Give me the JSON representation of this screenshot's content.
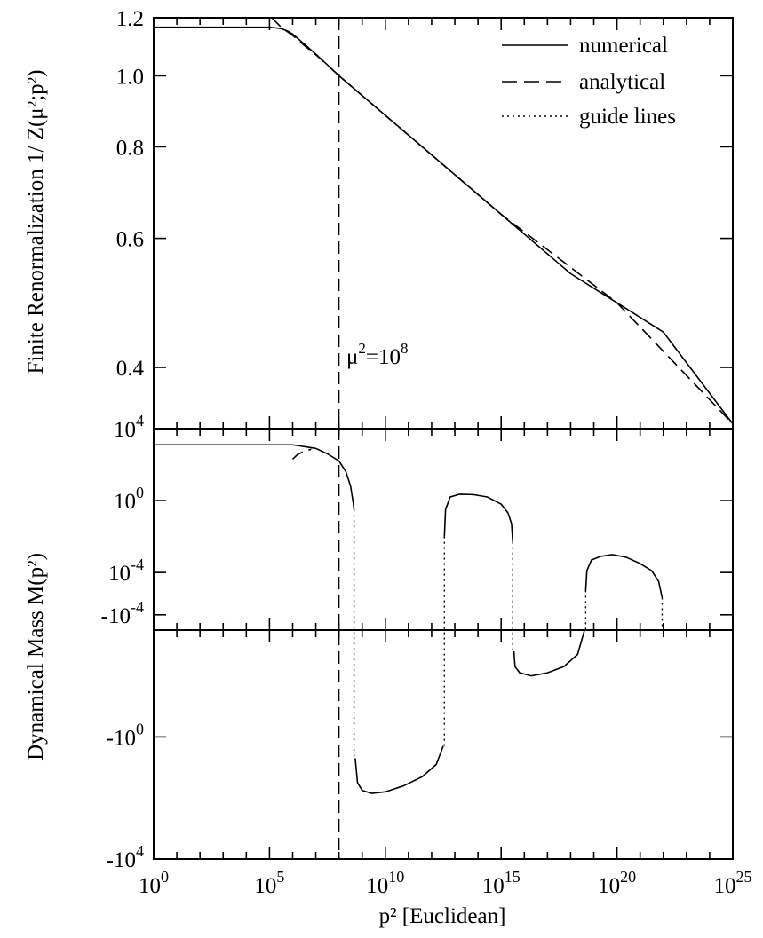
{
  "chart_data": [
    {
      "panel": "top",
      "type": "line",
      "ylabel": "Finite Renormalization 1/ Z(μ²;p²)",
      "yscale": "log",
      "ylim": [
        0.33,
        1.2
      ],
      "xscale": "log",
      "xlim": [
        1,
        1e+25
      ],
      "yticks": [
        {
          "label": "1.2",
          "value": 1.2
        },
        {
          "label": "1.0",
          "value": 1.0
        },
        {
          "label": "0.8",
          "value": 0.8
        },
        {
          "label": "0.6",
          "value": 0.6
        },
        {
          "label": "0.4",
          "value": 0.4
        }
      ],
      "legend": {
        "position": "top-right",
        "entries": [
          {
            "label": "numerical",
            "style": "solid"
          },
          {
            "label": "analytical",
            "style": "dashed"
          },
          {
            "label": "guide lines",
            "style": "dotted"
          }
        ]
      },
      "annotation": {
        "base": "μ",
        "sup1": "2",
        "mid": "=10",
        "sup2": "8",
        "x": 100000000.0
      },
      "series": [
        {
          "name": "numerical",
          "style": "solid",
          "x_log10": [
            0,
            5,
            5.5,
            5.8,
            6,
            6.5,
            7,
            7.5,
            8,
            10,
            12,
            15,
            18,
            20,
            22,
            25
          ],
          "y": [
            1.165,
            1.165,
            1.16,
            1.15,
            1.14,
            1.105,
            1.07,
            1.035,
            1.0,
            0.883,
            0.78,
            0.647,
            0.537,
            0.49,
            0.447,
            0.335
          ]
        },
        {
          "name": "analytical",
          "style": "dashed",
          "x_log10": [
            5.1,
            5.5,
            6,
            6.5,
            7,
            7.5,
            8,
            10,
            15,
            20,
            25
          ],
          "y": [
            1.2,
            1.165,
            1.135,
            1.1,
            1.068,
            1.034,
            1.0,
            0.883,
            0.647,
            0.49,
            0.335
          ]
        }
      ]
    },
    {
      "panel": "middle",
      "type": "line",
      "ylabel": "Dynamical Mass M(p²)",
      "yscale": "log",
      "ylim_log10": [
        -7.2,
        4
      ],
      "yticks": [
        {
          "base": "10",
          "exp": "4",
          "log10": 4
        },
        {
          "base": "10",
          "exp": "0",
          "log10": 0
        },
        {
          "base": "10",
          "exp": "-4",
          "log10": -4
        }
      ],
      "series": [
        {
          "name": "numerical",
          "style": "solid",
          "segments": [
            {
              "x_log10": [
                0,
                5,
                6,
                7,
                7.5,
                8,
                8.3,
                8.5,
                8.6,
                8.65
              ],
              "y_log10": [
                3.1,
                3.1,
                3.1,
                2.9,
                2.6,
                2.2,
                1.6,
                0.8,
                0.0,
                -0.5
              ]
            },
            {
              "x_log10": [
                12.55,
                12.6,
                12.8,
                13.2,
                13.8,
                14.4,
                15.0,
                15.3,
                15.45,
                15.5
              ],
              "y_log10": [
                -2.0,
                -0.5,
                0.2,
                0.35,
                0.33,
                0.2,
                -0.2,
                -0.7,
                -1.3,
                -2.3
              ]
            },
            {
              "x_log10": [
                18.65,
                18.7,
                18.9,
                19.3,
                19.8,
                20.4,
                21.0,
                21.5,
                21.8,
                21.95
              ],
              "y_log10": [
                -5.0,
                -3.9,
                -3.3,
                -3.1,
                -3.0,
                -3.15,
                -3.5,
                -3.9,
                -4.5,
                -5.4
              ]
            }
          ]
        },
        {
          "name": "analytical",
          "style": "dashed",
          "segments": [
            {
              "x_log10": [
                6.0,
                6.2,
                6.5,
                6.8
              ],
              "y_log10": [
                2.3,
                2.55,
                2.75,
                2.85
              ]
            }
          ]
        }
      ]
    },
    {
      "panel": "bottom",
      "type": "line",
      "xlabel": "p² [Euclidean]",
      "ylabel": "Dynamical Mass M(p²)",
      "yscale": "negative-log",
      "ylim_log10_descending": [
        -3.5,
        4
      ],
      "yticks": [
        {
          "base": "-10",
          "exp": "-4",
          "log10": -4
        },
        {
          "base": "-10",
          "exp": "0",
          "log10": 0
        },
        {
          "base": "-10",
          "exp": "4",
          "log10": 4
        }
      ],
      "xticks": [
        {
          "base": "10",
          "exp": "0",
          "log10": 0
        },
        {
          "base": "10",
          "exp": "5",
          "log10": 5
        },
        {
          "base": "10",
          "exp": "10",
          "log10": 10
        },
        {
          "base": "10",
          "exp": "15",
          "log10": 15
        },
        {
          "base": "10",
          "exp": "20",
          "log10": 20
        },
        {
          "base": "10",
          "exp": "25",
          "log10": 25
        }
      ],
      "series": [
        {
          "name": "numerical",
          "style": "solid",
          "segments": [
            {
              "x_log10": [
                8.7,
                8.8,
                9.0,
                9.4,
                10.0,
                10.8,
                11.6,
                12.2,
                12.5
              ],
              "y_log10": [
                0.7,
                1.5,
                1.75,
                1.85,
                1.8,
                1.6,
                1.3,
                0.9,
                0.3
              ]
            },
            {
              "x_log10": [
                15.55,
                15.6,
                15.8,
                16.3,
                17.0,
                17.7,
                18.3,
                18.6
              ],
              "y_log10": [
                -2.8,
                -2.3,
                -2.1,
                -2.0,
                -2.1,
                -2.3,
                -2.7,
                -3.5
              ]
            },
            {
              "x_log10": [
                22.0,
                22.1,
                22.4,
                23.0,
                23.7,
                24.4,
                25.0
              ],
              "y_log10": [
                -6.0,
                -5.2,
                -4.9,
                -4.85,
                -5.0,
                -5.25,
                -5.6
              ]
            }
          ]
        }
      ]
    },
    {
      "guide_lines": [
        {
          "x_log10": 8.65,
          "from": "middle",
          "y_log10": -0.5,
          "to": "bottom",
          "y_bottom_log10": 0.7
        },
        {
          "x_log10": 12.55,
          "from": "middle",
          "y_log10": -2.0,
          "to": "bottom",
          "y_bottom_log10": 0.3
        },
        {
          "x_log10": 15.5,
          "from": "middle",
          "y_log10": -2.3,
          "to": "bottom",
          "y_bottom_log10": -2.8
        },
        {
          "x_log10": 18.65,
          "from": "middle",
          "y_log10": -5.0,
          "to": "bottom",
          "y_bottom_log10": -3.5
        },
        {
          "x_log10": 21.95,
          "from": "middle",
          "y_log10": -5.4,
          "to": "bottom",
          "y_bottom_log10": -6.0
        }
      ],
      "mu_line": {
        "x_log10": 8,
        "style": "dashed"
      }
    }
  ]
}
